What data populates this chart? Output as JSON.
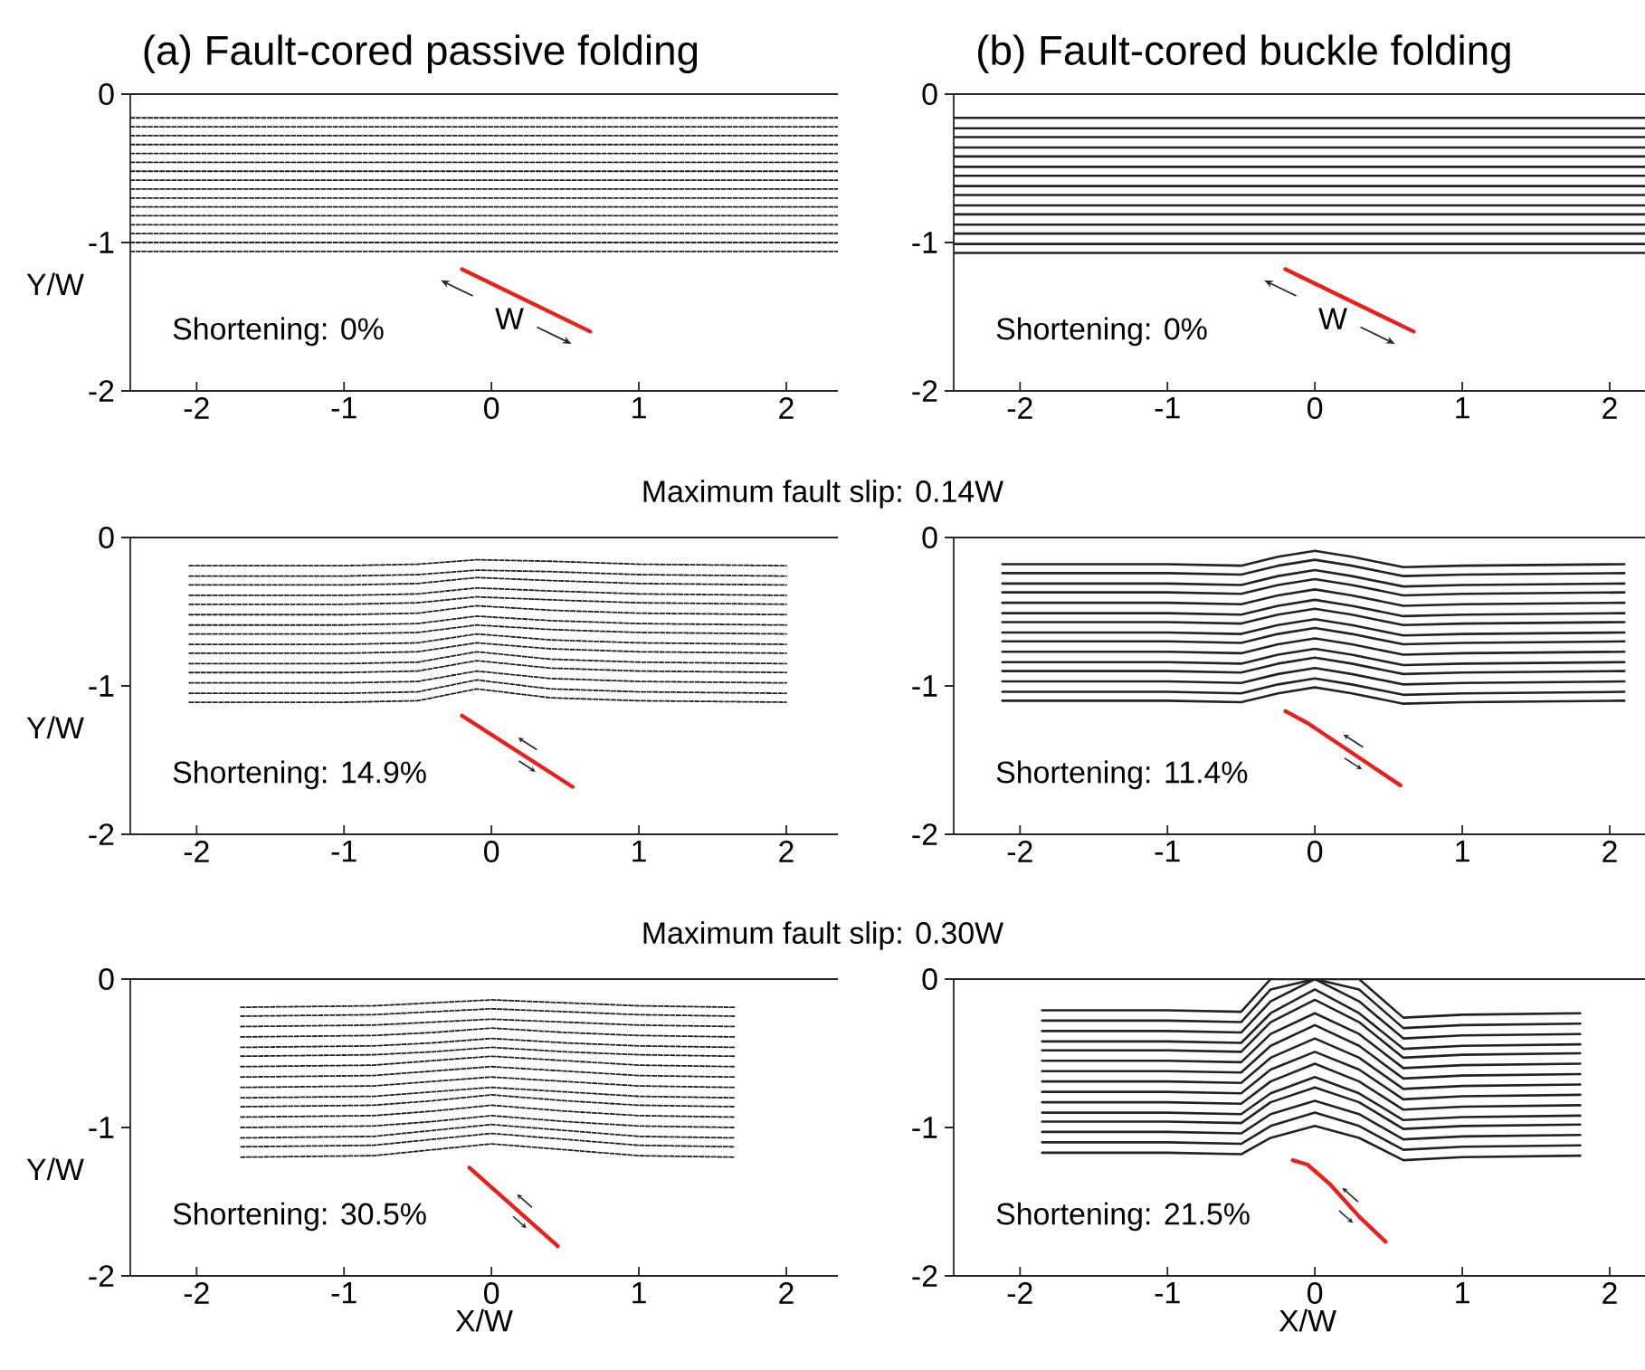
{
  "chart_data": [
    {
      "type": "line",
      "title": "(a) Fault-cored passive folding",
      "ylabel": "Y/W",
      "xlim": [
        -2.45,
        2.35
      ],
      "ylim": [
        -2,
        0
      ],
      "xticks": [
        -2,
        -1,
        0,
        1,
        2
      ],
      "yticks": [
        -2,
        -1,
        0
      ],
      "x": [
        -2.45,
        2.35
      ],
      "color": "#222222",
      "line_style": "dashed",
      "annotations": [
        "Shortening: 0%",
        "W"
      ],
      "series": [
        {
          "values": [
            -0.16,
            -0.16
          ]
        },
        {
          "values": [
            -0.22,
            -0.22
          ]
        },
        {
          "values": [
            -0.28,
            -0.28
          ]
        },
        {
          "values": [
            -0.34,
            -0.34
          ]
        },
        {
          "values": [
            -0.4,
            -0.4
          ]
        },
        {
          "values": [
            -0.46,
            -0.46
          ]
        },
        {
          "values": [
            -0.52,
            -0.52
          ]
        },
        {
          "values": [
            -0.58,
            -0.58
          ]
        },
        {
          "values": [
            -0.64,
            -0.64
          ]
        },
        {
          "values": [
            -0.7,
            -0.7
          ]
        },
        {
          "values": [
            -0.76,
            -0.76
          ]
        },
        {
          "values": [
            -0.82,
            -0.82
          ]
        },
        {
          "values": [
            -0.88,
            -0.88
          ]
        },
        {
          "values": [
            -0.94,
            -0.94
          ]
        },
        {
          "values": [
            -1.0,
            -1.0
          ]
        },
        {
          "values": [
            -1.06,
            -1.06
          ]
        },
        {
          "x": [
            -0.2,
            0.67
          ],
          "values": [
            -1.18,
            -1.6
          ],
          "color": "#e8201e",
          "line_style": "solid"
        }
      ]
    },
    {
      "type": "line",
      "title": "(b) Fault-cored buckle folding",
      "xlim": [
        -2.45,
        2.35
      ],
      "ylim": [
        -2,
        0
      ],
      "xticks": [
        -2,
        -1,
        0,
        1,
        2
      ],
      "yticks": [
        -2,
        -1,
        0
      ],
      "x": [
        -2.45,
        2.35
      ],
      "color": "#222222",
      "line_style": "solid",
      "annotations": [
        "Shortening: 0%",
        "W"
      ],
      "series": [
        {
          "values": [
            -0.16,
            -0.16
          ]
        },
        {
          "values": [
            -0.23,
            -0.23
          ]
        },
        {
          "values": [
            -0.29,
            -0.29
          ]
        },
        {
          "values": [
            -0.36,
            -0.36
          ]
        },
        {
          "values": [
            -0.42,
            -0.42
          ]
        },
        {
          "values": [
            -0.49,
            -0.49
          ]
        },
        {
          "values": [
            -0.55,
            -0.55
          ]
        },
        {
          "values": [
            -0.62,
            -0.62
          ]
        },
        {
          "values": [
            -0.68,
            -0.68
          ]
        },
        {
          "values": [
            -0.75,
            -0.75
          ]
        },
        {
          "values": [
            -0.81,
            -0.81
          ]
        },
        {
          "values": [
            -0.88,
            -0.88
          ]
        },
        {
          "values": [
            -0.94,
            -0.94
          ]
        },
        {
          "values": [
            -1.01,
            -1.01
          ]
        },
        {
          "values": [
            -1.07,
            -1.07
          ]
        },
        {
          "x": [
            -0.2,
            0.67
          ],
          "values": [
            -1.18,
            -1.6
          ],
          "color": "#e8201e",
          "line_style": "solid"
        }
      ]
    },
    {
      "type": "line",
      "subtitle": "Maximum fault slip: 0.14W",
      "ylabel": "Y/W",
      "xlim": [
        -2.45,
        2.35
      ],
      "ylim": [
        -2,
        0
      ],
      "xticks": [
        -2,
        -1,
        0,
        1,
        2
      ],
      "yticks": [
        -2,
        -1,
        0
      ],
      "x": [
        -2.05,
        -1,
        -0.5,
        -0.1,
        0.4,
        1,
        2.0
      ],
      "color": "#222222",
      "line_style": "dashed",
      "annotations": [
        "Shortening: 14.9%"
      ],
      "series": [
        {
          "values": [
            -0.19,
            -0.19,
            -0.18,
            -0.15,
            -0.16,
            -0.18,
            -0.19
          ]
        },
        {
          "values": [
            -0.26,
            -0.26,
            -0.25,
            -0.22,
            -0.23,
            -0.25,
            -0.26
          ]
        },
        {
          "values": [
            -0.32,
            -0.32,
            -0.31,
            -0.27,
            -0.29,
            -0.31,
            -0.32
          ]
        },
        {
          "values": [
            -0.39,
            -0.39,
            -0.38,
            -0.34,
            -0.36,
            -0.38,
            -0.39
          ]
        },
        {
          "values": [
            -0.45,
            -0.45,
            -0.44,
            -0.4,
            -0.42,
            -0.44,
            -0.45
          ]
        },
        {
          "values": [
            -0.52,
            -0.52,
            -0.51,
            -0.46,
            -0.49,
            -0.51,
            -0.52
          ]
        },
        {
          "values": [
            -0.59,
            -0.59,
            -0.58,
            -0.53,
            -0.56,
            -0.58,
            -0.59
          ]
        },
        {
          "values": [
            -0.65,
            -0.65,
            -0.64,
            -0.59,
            -0.62,
            -0.64,
            -0.65
          ]
        },
        {
          "values": [
            -0.72,
            -0.72,
            -0.71,
            -0.65,
            -0.69,
            -0.71,
            -0.72
          ]
        },
        {
          "values": [
            -0.78,
            -0.78,
            -0.77,
            -0.71,
            -0.75,
            -0.77,
            -0.78
          ]
        },
        {
          "values": [
            -0.85,
            -0.85,
            -0.84,
            -0.77,
            -0.82,
            -0.84,
            -0.85
          ]
        },
        {
          "values": [
            -0.91,
            -0.91,
            -0.9,
            -0.83,
            -0.88,
            -0.9,
            -0.91
          ]
        },
        {
          "values": [
            -0.98,
            -0.98,
            -0.97,
            -0.9,
            -0.95,
            -0.97,
            -0.98
          ]
        },
        {
          "values": [
            -1.05,
            -1.05,
            -1.04,
            -0.96,
            -1.02,
            -1.04,
            -1.05
          ]
        },
        {
          "values": [
            -1.11,
            -1.11,
            -1.1,
            -1.02,
            -1.08,
            -1.1,
            -1.11
          ]
        },
        {
          "x": [
            -0.2,
            0.55
          ],
          "values": [
            -1.2,
            -1.68
          ],
          "color": "#e8201e",
          "line_style": "solid"
        }
      ]
    },
    {
      "type": "line",
      "xlim": [
        -2.45,
        2.35
      ],
      "ylim": [
        -2,
        0
      ],
      "xticks": [
        -2,
        -1,
        0,
        1,
        2
      ],
      "yticks": [
        -2,
        -1,
        0
      ],
      "x": [
        -2.12,
        -1,
        -0.5,
        -0.25,
        0,
        0.25,
        0.6,
        1,
        2.1
      ],
      "color": "#222222",
      "line_style": "solid",
      "annotations": [
        "Shortening: 11.4%"
      ],
      "series": [
        {
          "values": [
            -0.18,
            -0.18,
            -0.19,
            -0.13,
            -0.09,
            -0.13,
            -0.2,
            -0.19,
            -0.18
          ]
        },
        {
          "values": [
            -0.24,
            -0.24,
            -0.25,
            -0.19,
            -0.15,
            -0.19,
            -0.26,
            -0.25,
            -0.24
          ]
        },
        {
          "values": [
            -0.31,
            -0.31,
            -0.32,
            -0.26,
            -0.22,
            -0.26,
            -0.33,
            -0.32,
            -0.31
          ]
        },
        {
          "values": [
            -0.37,
            -0.37,
            -0.38,
            -0.32,
            -0.28,
            -0.32,
            -0.39,
            -0.38,
            -0.37
          ]
        },
        {
          "values": [
            -0.44,
            -0.44,
            -0.45,
            -0.39,
            -0.35,
            -0.39,
            -0.46,
            -0.45,
            -0.44
          ]
        },
        {
          "values": [
            -0.51,
            -0.51,
            -0.52,
            -0.46,
            -0.42,
            -0.46,
            -0.53,
            -0.52,
            -0.51
          ]
        },
        {
          "values": [
            -0.57,
            -0.57,
            -0.58,
            -0.52,
            -0.48,
            -0.52,
            -0.59,
            -0.58,
            -0.57
          ]
        },
        {
          "values": [
            -0.64,
            -0.64,
            -0.65,
            -0.59,
            -0.55,
            -0.59,
            -0.66,
            -0.65,
            -0.64
          ]
        },
        {
          "values": [
            -0.7,
            -0.7,
            -0.71,
            -0.65,
            -0.61,
            -0.65,
            -0.72,
            -0.71,
            -0.7
          ]
        },
        {
          "values": [
            -0.77,
            -0.77,
            -0.78,
            -0.72,
            -0.68,
            -0.72,
            -0.79,
            -0.78,
            -0.77
          ]
        },
        {
          "values": [
            -0.84,
            -0.84,
            -0.85,
            -0.79,
            -0.75,
            -0.79,
            -0.86,
            -0.85,
            -0.84
          ]
        },
        {
          "values": [
            -0.9,
            -0.9,
            -0.91,
            -0.85,
            -0.81,
            -0.85,
            -0.92,
            -0.91,
            -0.9
          ]
        },
        {
          "values": [
            -0.97,
            -0.97,
            -0.98,
            -0.92,
            -0.88,
            -0.92,
            -0.99,
            -0.98,
            -0.97
          ]
        },
        {
          "values": [
            -1.04,
            -1.04,
            -1.05,
            -0.99,
            -0.95,
            -0.99,
            -1.06,
            -1.05,
            -1.04
          ]
        },
        {
          "values": [
            -1.1,
            -1.1,
            -1.11,
            -1.05,
            -1.01,
            -1.05,
            -1.12,
            -1.11,
            -1.1
          ]
        },
        {
          "x": [
            -0.2,
            -0.05,
            0.25,
            0.58
          ],
          "values": [
            -1.17,
            -1.25,
            -1.45,
            -1.67
          ],
          "color": "#e8201e",
          "line_style": "solid"
        }
      ]
    },
    {
      "type": "line",
      "subtitle": "Maximum fault slip: 0.30W",
      "xlabel": "X/W",
      "ylabel": "Y/W",
      "xlim": [
        -2.45,
        2.35
      ],
      "ylim": [
        -2,
        0
      ],
      "xticks": [
        -2,
        -1,
        0,
        1,
        2
      ],
      "yticks": [
        -2,
        -1,
        0
      ],
      "x": [
        -1.7,
        -0.8,
        -0.4,
        0,
        0.5,
        1,
        1.65
      ],
      "color": "#222222",
      "line_style": "dashed",
      "annotations": [
        "Shortening: 30.5%"
      ],
      "series": [
        {
          "values": [
            -0.19,
            -0.18,
            -0.16,
            -0.14,
            -0.16,
            -0.18,
            -0.19
          ]
        },
        {
          "values": [
            -0.25,
            -0.24,
            -0.22,
            -0.2,
            -0.22,
            -0.24,
            -0.25
          ]
        },
        {
          "values": [
            -0.32,
            -0.31,
            -0.29,
            -0.27,
            -0.29,
            -0.31,
            -0.32
          ]
        },
        {
          "values": [
            -0.39,
            -0.38,
            -0.36,
            -0.33,
            -0.36,
            -0.38,
            -0.39
          ]
        },
        {
          "values": [
            -0.46,
            -0.45,
            -0.43,
            -0.4,
            -0.43,
            -0.45,
            -0.46
          ]
        },
        {
          "values": [
            -0.52,
            -0.51,
            -0.49,
            -0.46,
            -0.49,
            -0.51,
            -0.52
          ]
        },
        {
          "values": [
            -0.59,
            -0.58,
            -0.55,
            -0.52,
            -0.55,
            -0.58,
            -0.59
          ]
        },
        {
          "values": [
            -0.66,
            -0.65,
            -0.62,
            -0.59,
            -0.62,
            -0.65,
            -0.66
          ]
        },
        {
          "values": [
            -0.73,
            -0.72,
            -0.69,
            -0.66,
            -0.69,
            -0.72,
            -0.73
          ]
        },
        {
          "values": [
            -0.8,
            -0.79,
            -0.76,
            -0.73,
            -0.76,
            -0.79,
            -0.8
          ]
        },
        {
          "values": [
            -0.86,
            -0.85,
            -0.82,
            -0.78,
            -0.82,
            -0.85,
            -0.86
          ]
        },
        {
          "values": [
            -0.93,
            -0.92,
            -0.89,
            -0.85,
            -0.89,
            -0.92,
            -0.93
          ]
        },
        {
          "values": [
            -1.0,
            -0.99,
            -0.96,
            -0.92,
            -0.96,
            -0.99,
            -1.0
          ]
        },
        {
          "values": [
            -1.07,
            -1.06,
            -1.02,
            -0.98,
            -1.02,
            -1.06,
            -1.07
          ]
        },
        {
          "values": [
            -1.13,
            -1.12,
            -1.08,
            -1.04,
            -1.08,
            -1.12,
            -1.13
          ]
        },
        {
          "values": [
            -1.2,
            -1.19,
            -1.15,
            -1.11,
            -1.15,
            -1.19,
            -1.2
          ]
        },
        {
          "x": [
            -0.15,
            0.45
          ],
          "values": [
            -1.27,
            -1.8
          ],
          "color": "#e8201e",
          "line_style": "solid"
        }
      ]
    },
    {
      "type": "line",
      "xlabel": "X/W",
      "xlim": [
        -2.45,
        2.35
      ],
      "ylim": [
        -2,
        0
      ],
      "xticks": [
        -2,
        -1,
        0,
        1,
        2
      ],
      "yticks": [
        -2,
        -1,
        0
      ],
      "x": [
        -1.85,
        -1,
        -0.5,
        -0.3,
        0,
        0.3,
        0.6,
        1,
        1.8
      ],
      "color": "#222222",
      "line_style": "solid",
      "annotations": [
        "Shortening: 21.5%"
      ],
      "series": [
        {
          "values": [
            -0.21,
            -0.21,
            -0.22,
            0,
            0,
            0,
            -0.26,
            -0.24,
            -0.23
          ]
        },
        {
          "values": [
            -0.28,
            -0.28,
            -0.29,
            -0.07,
            0,
            -0.07,
            -0.33,
            -0.31,
            -0.3
          ]
        },
        {
          "values": [
            -0.35,
            -0.35,
            -0.36,
            -0.15,
            0,
            -0.15,
            -0.4,
            -0.38,
            -0.37
          ]
        },
        {
          "values": [
            -0.42,
            -0.42,
            -0.43,
            -0.23,
            -0.07,
            -0.23,
            -0.47,
            -0.45,
            -0.44
          ]
        },
        {
          "values": [
            -0.48,
            -0.48,
            -0.49,
            -0.29,
            -0.14,
            -0.29,
            -0.53,
            -0.51,
            -0.5
          ]
        },
        {
          "values": [
            -0.55,
            -0.55,
            -0.56,
            -0.37,
            -0.23,
            -0.37,
            -0.6,
            -0.58,
            -0.57
          ]
        },
        {
          "values": [
            -0.62,
            -0.62,
            -0.63,
            -0.45,
            -0.31,
            -0.45,
            -0.67,
            -0.65,
            -0.64
          ]
        },
        {
          "values": [
            -0.69,
            -0.69,
            -0.7,
            -0.53,
            -0.4,
            -0.53,
            -0.74,
            -0.72,
            -0.71
          ]
        },
        {
          "values": [
            -0.76,
            -0.76,
            -0.77,
            -0.61,
            -0.49,
            -0.61,
            -0.81,
            -0.79,
            -0.78
          ]
        },
        {
          "values": [
            -0.83,
            -0.83,
            -0.84,
            -0.69,
            -0.57,
            -0.69,
            -0.88,
            -0.86,
            -0.85
          ]
        },
        {
          "values": [
            -0.9,
            -0.9,
            -0.91,
            -0.77,
            -0.66,
            -0.77,
            -0.95,
            -0.93,
            -0.92
          ]
        },
        {
          "values": [
            -0.96,
            -0.96,
            -0.97,
            -0.83,
            -0.73,
            -0.83,
            -1.01,
            -0.99,
            -0.98
          ]
        },
        {
          "values": [
            -1.03,
            -1.03,
            -1.04,
            -0.91,
            -0.82,
            -0.91,
            -1.08,
            -1.06,
            -1.05
          ]
        },
        {
          "values": [
            -1.1,
            -1.1,
            -1.11,
            -0.99,
            -0.9,
            -0.99,
            -1.15,
            -1.13,
            -1.12
          ]
        },
        {
          "values": [
            -1.17,
            -1.17,
            -1.18,
            -1.07,
            -0.99,
            -1.07,
            -1.22,
            -1.2,
            -1.19
          ]
        },
        {
          "x": [
            -0.15,
            -0.05,
            0.1,
            0.3,
            0.48
          ],
          "values": [
            -1.22,
            -1.25,
            -1.38,
            -1.6,
            -1.77
          ],
          "color": "#e8201e",
          "line_style": "solid"
        }
      ]
    }
  ]
}
